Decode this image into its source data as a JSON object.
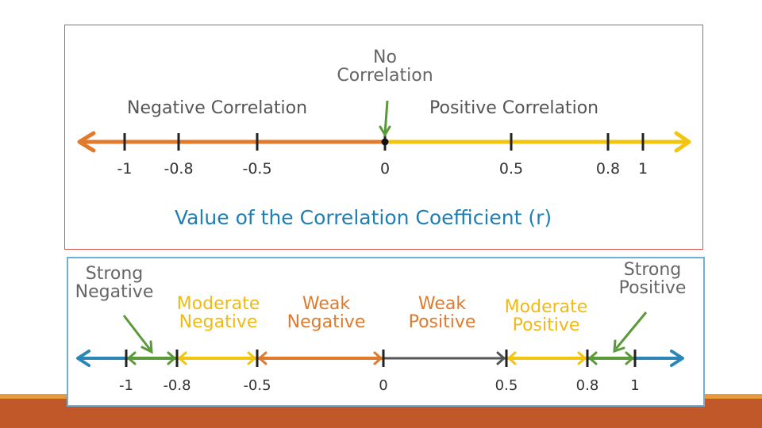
{
  "colors": {
    "negative": "#e07a2c",
    "positive": "#f2c511",
    "strong": "#2b86b8",
    "strong_arrow": "#5a9a3a",
    "weak_pos_line": "#555555",
    "title_blue": "#1f7fb4",
    "bottom_bar": "#c0582a",
    "bottom_stripe": "#e99a3d",
    "top_border": "#d9534f",
    "bottom_border": "#6fb0d8"
  },
  "top": {
    "no_correlation": [
      "No",
      "Correlation"
    ],
    "negative_label": "Negative Correlation",
    "positive_label": "Positive Correlation",
    "ticks": [
      {
        "value": -1,
        "label": "-1"
      },
      {
        "value": -0.8,
        "label": "-0.8"
      },
      {
        "value": -0.5,
        "label": "-0.5"
      },
      {
        "value": 0,
        "label": "0"
      },
      {
        "value": 0.5,
        "label": "0.5"
      },
      {
        "value": 0.8,
        "label": "0.8"
      },
      {
        "value": 1,
        "label": "1"
      }
    ],
    "axis_title": "Value of the Correlation Coefficient (r)"
  },
  "bottom": {
    "strong_negative": [
      "Strong",
      "Negative"
    ],
    "moderate_negative": [
      "Moderate",
      "Negative"
    ],
    "weak_negative": [
      "Weak",
      "Negative"
    ],
    "weak_positive": [
      "Weak",
      "Positive"
    ],
    "moderate_positive": [
      "Moderate",
      "Positive"
    ],
    "strong_positive": [
      "Strong",
      "Positive"
    ],
    "ticks": [
      {
        "value": -1,
        "label": "-1"
      },
      {
        "value": -0.8,
        "label": "-0.8"
      },
      {
        "value": -0.5,
        "label": "-0.5"
      },
      {
        "value": 0,
        "label": "0"
      },
      {
        "value": 0.5,
        "label": "0.5"
      },
      {
        "value": 0.8,
        "label": "0.8"
      },
      {
        "value": 1,
        "label": "1"
      }
    ]
  }
}
